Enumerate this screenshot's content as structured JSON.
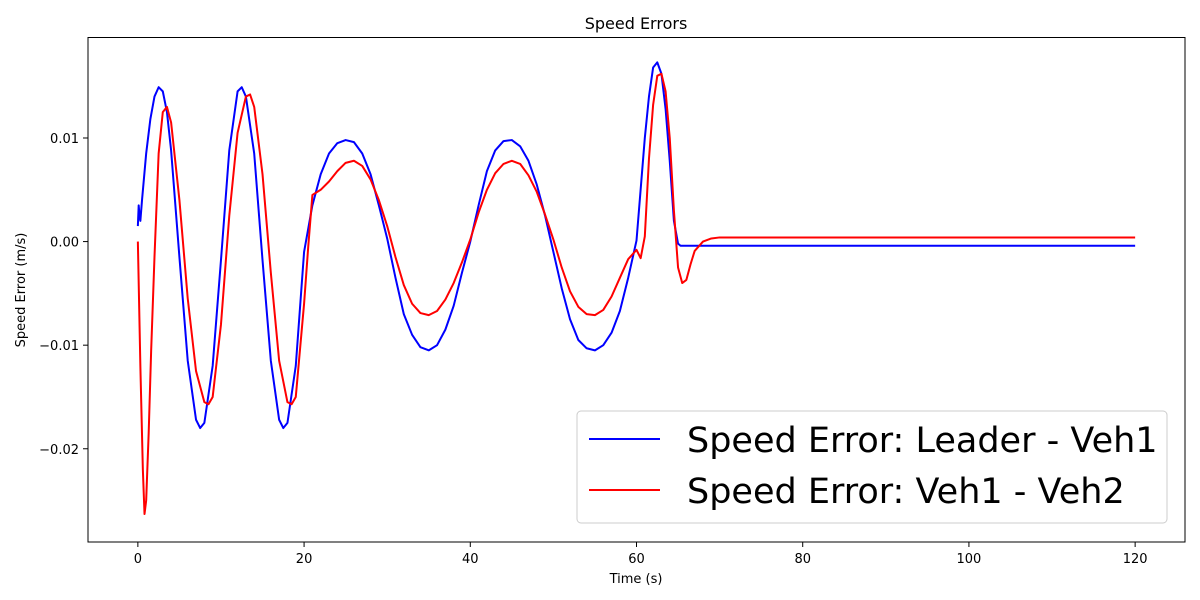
{
  "chart_data": {
    "type": "line",
    "title": "Speed Errors",
    "xlabel": "Time (s)",
    "ylabel": "Speed Error (m/s)",
    "xlim": [
      -6,
      126
    ],
    "ylim": [
      -0.029,
      0.0197
    ],
    "xticks": [
      0,
      20,
      40,
      60,
      80,
      100,
      120
    ],
    "xtick_labels": [
      "0",
      "20",
      "40",
      "60",
      "80",
      "100",
      "120"
    ],
    "yticks": [
      -0.02,
      -0.01,
      0.0,
      0.01
    ],
    "ytick_labels": [
      "−0.02",
      "−0.01",
      "0.00",
      "0.01"
    ],
    "grid": false,
    "legend_position": "bottom-right",
    "series": [
      {
        "name": "Speed Error: Leader - Veh1",
        "color": "#0000ff",
        "x": [
          0,
          0.1,
          0.2,
          0.3,
          0.5,
          1,
          1.5,
          2,
          2.5,
          3,
          3.5,
          4,
          5,
          6,
          7,
          7.5,
          8,
          9,
          10,
          11,
          12,
          12.5,
          13,
          14,
          15,
          16,
          17,
          17.5,
          18,
          19,
          20,
          21,
          22,
          23,
          24,
          25,
          26,
          27,
          28,
          29,
          30,
          31,
          32,
          33,
          34,
          35,
          36,
          37,
          38,
          39,
          40,
          41,
          42,
          43,
          44,
          45,
          46,
          47,
          48,
          49,
          50,
          51,
          52,
          53,
          54,
          55,
          56,
          57,
          58,
          59,
          60,
          61,
          61.5,
          62,
          62.5,
          63,
          63.5,
          64,
          64.5,
          65,
          65.3,
          65.6,
          66,
          70,
          80,
          90,
          100,
          110,
          120
        ],
        "y": [
          0.0015,
          0.0035,
          0.0025,
          0.002,
          0.004,
          0.0085,
          0.0118,
          0.014,
          0.0149,
          0.0145,
          0.0125,
          0.0088,
          -0.0015,
          -0.0115,
          -0.0172,
          -0.018,
          -0.0175,
          -0.012,
          -0.0018,
          0.0088,
          0.0145,
          0.0149,
          0.014,
          0.0085,
          -0.0018,
          -0.0115,
          -0.0172,
          -0.018,
          -0.0175,
          -0.012,
          -0.001,
          0.0035,
          0.0065,
          0.0085,
          0.0095,
          0.0098,
          0.0096,
          0.0085,
          0.0065,
          0.0035,
          0.0003,
          -0.0035,
          -0.007,
          -0.009,
          -0.0102,
          -0.0105,
          -0.01,
          -0.0085,
          -0.0062,
          -0.003,
          0.0,
          0.0035,
          0.0068,
          0.0088,
          0.0097,
          0.0098,
          0.0092,
          0.0078,
          0.0055,
          0.0025,
          -0.001,
          -0.0045,
          -0.0075,
          -0.0095,
          -0.0103,
          -0.0105,
          -0.01,
          -0.0088,
          -0.0067,
          -0.0035,
          0.0001,
          0.01,
          0.014,
          0.0168,
          0.0173,
          0.0162,
          0.0128,
          0.0078,
          0.002,
          -0.0002,
          -0.0004,
          -0.0004,
          -0.0004,
          -0.0004,
          -0.0004,
          -0.0004,
          -0.0004,
          -0.0004,
          -0.0004
        ]
      },
      {
        "name": "Speed Error: Veh1 - Veh2",
        "color": "#ff0000",
        "x": [
          0,
          0.3,
          0.6,
          0.8,
          1,
          1.3,
          1.6,
          2,
          2.5,
          3,
          3.5,
          4,
          5,
          6,
          7,
          8,
          8.5,
          9,
          10,
          11,
          12,
          13,
          13.5,
          14,
          15,
          16,
          17,
          18,
          18.5,
          19,
          20,
          20.5,
          21,
          22,
          23,
          24,
          25,
          26,
          27,
          28,
          29,
          30,
          31,
          32,
          33,
          34,
          35,
          36,
          37,
          38,
          39,
          40,
          41,
          42,
          43,
          44,
          45,
          46,
          47,
          48,
          49,
          50,
          51,
          52,
          53,
          54,
          55,
          56,
          57,
          58,
          59,
          60,
          60.5,
          61,
          61.5,
          62,
          62.5,
          63,
          63.5,
          64,
          64.5,
          65,
          65.5,
          66,
          66.5,
          67,
          68,
          69,
          70,
          80,
          90,
          100,
          110,
          120
        ],
        "y": [
          0.0,
          -0.012,
          -0.022,
          -0.0263,
          -0.025,
          -0.0185,
          -0.0105,
          -0.0015,
          0.0085,
          0.0125,
          0.013,
          0.0115,
          0.004,
          -0.0055,
          -0.0125,
          -0.0155,
          -0.0157,
          -0.015,
          -0.008,
          0.0025,
          0.0105,
          0.014,
          0.0142,
          0.013,
          0.0065,
          -0.003,
          -0.0115,
          -0.0155,
          -0.0157,
          -0.015,
          -0.006,
          -0.0005,
          0.0045,
          0.005,
          0.0058,
          0.0068,
          0.0076,
          0.0078,
          0.0073,
          0.006,
          0.004,
          0.0015,
          -0.0015,
          -0.0042,
          -0.006,
          -0.0069,
          -0.0071,
          -0.0067,
          -0.0056,
          -0.004,
          -0.002,
          0.0002,
          0.0028,
          0.005,
          0.0066,
          0.0075,
          0.0078,
          0.0075,
          0.0064,
          0.0048,
          0.0026,
          0.0002,
          -0.0025,
          -0.0048,
          -0.0063,
          -0.007,
          -0.0071,
          -0.0066,
          -0.0053,
          -0.0035,
          -0.0017,
          -0.0008,
          -0.0016,
          0.0005,
          0.008,
          0.0132,
          0.016,
          0.0162,
          0.0145,
          0.01,
          0.003,
          -0.0025,
          -0.004,
          -0.0037,
          -0.0022,
          -0.0009,
          0.0,
          0.0003,
          0.0004,
          0.0004,
          0.0004,
          0.0004,
          0.0004,
          0.0004
        ]
      }
    ]
  }
}
